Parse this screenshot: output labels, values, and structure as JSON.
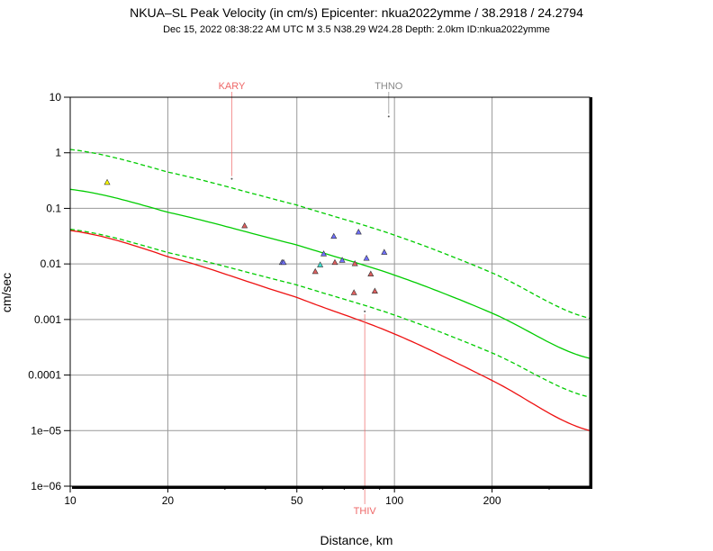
{
  "chart_data": {
    "type": "scatter",
    "title": "NKUA–SL Peak Velocity (in cm/s) Epicenter: nkua2022ymme / 38.2918 / 24.2794",
    "subtitle": "Dec 15, 2022 08:38:22 AM UTC    M 3.5    N38.29 W24.28    Depth: 2.0km    ID:nkua2022ymme",
    "xlabel": "Distance, km",
    "ylabel": "cm/sec",
    "x_scale": "log",
    "y_scale": "log",
    "xlim": [
      10,
      400
    ],
    "ylim": [
      1e-06,
      10
    ],
    "grid": true,
    "x_ticks": [
      {
        "value": 10,
        "label": "10"
      },
      {
        "value": 20,
        "label": "20"
      },
      {
        "value": 50,
        "label": "50"
      },
      {
        "value": 100,
        "label": "100"
      },
      {
        "value": 200,
        "label": "200"
      }
    ],
    "y_ticks": [
      {
        "value": 10,
        "label": "10"
      },
      {
        "value": 1,
        "label": "1"
      },
      {
        "value": 0.1,
        "label": "0.1"
      },
      {
        "value": 0.01,
        "label": "0.01"
      },
      {
        "value": 0.001,
        "label": "0.001"
      },
      {
        "value": 0.0001,
        "label": "0.0001"
      },
      {
        "value": 1e-05,
        "label": "1e−05"
      },
      {
        "value": 1e-06,
        "label": "1e−06"
      }
    ],
    "curves": [
      {
        "color": "#00cc00",
        "dashed": false,
        "x": [
          10,
          20,
          50,
          100,
          200,
          400
        ],
        "y": [
          0.22,
          0.085,
          0.022,
          0.0063,
          0.0013,
          0.0002
        ]
      },
      {
        "color": "#00cc00",
        "dashed": true,
        "x": [
          10,
          20,
          50,
          100,
          200,
          400
        ],
        "y": [
          1.15,
          0.45,
          0.115,
          0.033,
          0.0069,
          0.00105
        ]
      },
      {
        "color": "#00cc00",
        "dashed": true,
        "x": [
          10,
          20,
          50,
          100,
          200,
          400
        ],
        "y": [
          0.042,
          0.016,
          0.0042,
          0.0012,
          0.00025,
          4e-05
        ]
      },
      {
        "color": "#ee1111",
        "dashed": false,
        "x": [
          10,
          20,
          50,
          100,
          200,
          400
        ],
        "y": [
          0.04,
          0.0135,
          0.0025,
          0.00055,
          8e-05,
          1e-05
        ]
      }
    ],
    "points": [
      {
        "x": 13.0,
        "y": 0.29,
        "color": "#ffff00"
      },
      {
        "x": 34.5,
        "y": 0.048,
        "color": "#e06060"
      },
      {
        "x": 45.0,
        "y": 0.0105,
        "color": "#7070ff"
      },
      {
        "x": 45.5,
        "y": 0.0105,
        "color": "#7070ff"
      },
      {
        "x": 57.0,
        "y": 0.0072,
        "color": "#e06060"
      },
      {
        "x": 59.0,
        "y": 0.0095,
        "color": "#40e0d0"
      },
      {
        "x": 60.5,
        "y": 0.015,
        "color": "#7070ff"
      },
      {
        "x": 65.0,
        "y": 0.031,
        "color": "#7070ff"
      },
      {
        "x": 65.5,
        "y": 0.0105,
        "color": "#e06060"
      },
      {
        "x": 69.0,
        "y": 0.0115,
        "color": "#7070ff"
      },
      {
        "x": 75.0,
        "y": 0.003,
        "color": "#e06060"
      },
      {
        "x": 75.5,
        "y": 0.01,
        "color": "#e06060"
      },
      {
        "x": 77.5,
        "y": 0.037,
        "color": "#7070ff"
      },
      {
        "x": 82.0,
        "y": 0.0125,
        "color": "#7070ff"
      },
      {
        "x": 84.5,
        "y": 0.0065,
        "color": "#e06060"
      },
      {
        "x": 87.0,
        "y": 0.0032,
        "color": "#e06060"
      },
      {
        "x": 93.0,
        "y": 0.016,
        "color": "#7070ff"
      }
    ],
    "stations": [
      {
        "name": "KARY",
        "x": 31.5,
        "y": 0.34,
        "color": "#ee6666",
        "label_position": "top"
      },
      {
        "name": "THNO",
        "x": 96.0,
        "y": 4.5,
        "color": "#888888",
        "label_position": "top"
      },
      {
        "name": "THIV",
        "x": 81.0,
        "y": 0.0014,
        "color": "#ee6666",
        "label_position": "bottom"
      }
    ]
  }
}
